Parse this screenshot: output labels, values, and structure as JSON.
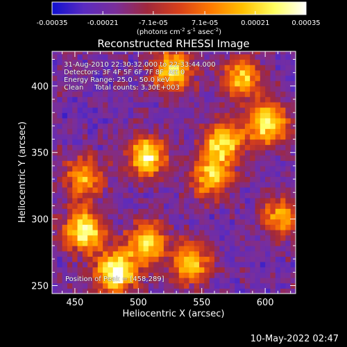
{
  "colorbar": {
    "tick_labels": [
      "-0.00035",
      "-0.00021",
      "-7.1e-05",
      "7.1e-05",
      "0.00021",
      "0.00035"
    ],
    "tick_values": [
      -0.00035,
      -0.00021,
      -7.1e-05,
      7.1e-05,
      0.00021,
      0.00035
    ],
    "range": [
      -0.00035,
      0.00035
    ],
    "units_main": "(photons cm",
    "units_exp1": "-2",
    "units_mid": " s",
    "units_exp2": "-1",
    "units_end": " asec",
    "units_exp3": "-2",
    "units_close": ")",
    "colors": [
      "#1010d0",
      "#5a2bc0",
      "#7a2e9a",
      "#a0283c",
      "#d8401a",
      "#ff7a00",
      "#ffc000",
      "#ffff60",
      "#ffffff"
    ]
  },
  "chart_data": {
    "type": "heatmap",
    "title": "Reconstructed RHESSI Image",
    "xlabel": "Heliocentric X (arcsec)",
    "ylabel": "Heliocentric Y (arcsec)",
    "xlim": [
      432,
      624
    ],
    "ylim": [
      244,
      426
    ],
    "x_ticks": [
      450,
      500,
      550,
      600
    ],
    "y_ticks": [
      250,
      300,
      350,
      400
    ],
    "x_tick_labels": [
      "450",
      "500",
      "550",
      "600"
    ],
    "y_tick_labels": [
      "250",
      "300",
      "350",
      "400"
    ],
    "peak": {
      "x": 458,
      "y": 289
    },
    "bright_regions": [
      {
        "x": 455,
        "y": 290,
        "intensity": 0.9
      },
      {
        "x": 480,
        "y": 258,
        "intensity": 1.0
      },
      {
        "x": 505,
        "y": 280,
        "intensity": 0.75
      },
      {
        "x": 505,
        "y": 345,
        "intensity": 0.85
      },
      {
        "x": 540,
        "y": 265,
        "intensity": 0.7
      },
      {
        "x": 565,
        "y": 355,
        "intensity": 0.8
      },
      {
        "x": 555,
        "y": 330,
        "intensity": 0.7
      },
      {
        "x": 600,
        "y": 370,
        "intensity": 0.85
      },
      {
        "x": 525,
        "y": 410,
        "intensity": 0.8
      },
      {
        "x": 580,
        "y": 405,
        "intensity": 0.7
      },
      {
        "x": 455,
        "y": 330,
        "intensity": 0.65
      },
      {
        "x": 610,
        "y": 300,
        "intensity": 0.6
      }
    ]
  },
  "overlay": {
    "line1": "31-Aug-2010 22:30:32.000 to 22:33:44.000",
    "line2": "Detectors: 3F 4F 5F 6F 7F 8F  Att 0",
    "line3": "Energy Range: 25.0 - 50.0 keV",
    "line4": "Clean     Total counts: 3.30E+003",
    "peak_label": "Position of Peak = [458,289]"
  },
  "timestamp": "10-May-2022 02:47"
}
